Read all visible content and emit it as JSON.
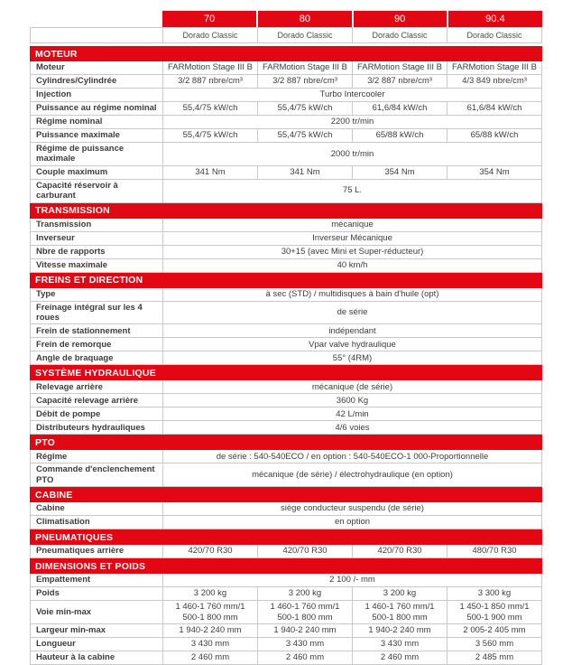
{
  "colors": {
    "accent_red": "#e30613",
    "border": "#c9c9c9",
    "text": "#3c3c3b"
  },
  "header": {
    "models": [
      "70",
      "80",
      "90",
      "90.4"
    ],
    "series": [
      "Dorado Classic",
      "Dorado Classic",
      "Dorado Classic",
      "Dorado Classic"
    ]
  },
  "sections": [
    {
      "title": "MOTEUR",
      "rows": [
        {
          "label": "Moteur",
          "values": [
            "FARMotion Stage III B",
            "FARMotion Stage III B",
            "FARMotion Stage III B",
            "FARMotion Stage III B"
          ]
        },
        {
          "label": "Cylindres/Cylindrée",
          "values": [
            "3/2 887 nbre/cm³",
            "3/2 887 nbre/cm³",
            "3/2 887 nbre/cm³",
            "4/3 849 nbre/cm³"
          ]
        },
        {
          "label": "Injection",
          "span": "Turbo Intercooler"
        },
        {
          "label": "Puissance au régime nominal",
          "values": [
            "55,4/75 kW/ch",
            "55,4/75 kW/ch",
            "61,6/84 kW/ch",
            "61,6/84 kW/ch"
          ]
        },
        {
          "label": "Régime nominal",
          "span": "2200 tr/min"
        },
        {
          "label": "Puissance maximale",
          "values": [
            "55,4/75 kW/ch",
            "55,4/75 kW/ch",
            "65/88 kW/ch",
            "65/88 kW/ch"
          ]
        },
        {
          "label": "Régime de puissance maximale",
          "span": "2000 tr/min"
        },
        {
          "label": "Couple maximum",
          "values": [
            "341 Nm",
            "341 Nm",
            "354 Nm",
            "354 Nm"
          ]
        },
        {
          "label": "Capacité réservoir à carburant",
          "span": "75 L."
        }
      ]
    },
    {
      "title": "TRANSMISSION",
      "rows": [
        {
          "label": "Transmission",
          "span": "mécanique"
        },
        {
          "label": "Inverseur",
          "span": "Inverseur Mécanique"
        },
        {
          "label": "Nbre de rapports",
          "span": "30+15 (avec Mini et Super-réducteur)"
        },
        {
          "label": "Vitesse maximale",
          "span": "40 km/h"
        }
      ]
    },
    {
      "title": "FREINS ET DIRECTION",
      "rows": [
        {
          "label": "Type",
          "span": "à sec (STD) / multidisques à bain d'huile (opt)"
        },
        {
          "label": "Freinage intégral sur les 4 roues",
          "span": "de série"
        },
        {
          "label": "Frein de stationnement",
          "span": "indépendant"
        },
        {
          "label": "Frein de remorque",
          "span": "Vpar valve hydraulique"
        },
        {
          "label": "Angle de braquage",
          "span": "55° (4RM)"
        }
      ]
    },
    {
      "title": "SYSTÈME HYDRAULIQUE",
      "rows": [
        {
          "label": "Relevage arrière",
          "span": "mécanique (de série)"
        },
        {
          "label": "Capacité relevage arrière",
          "span": "3600 Kg"
        },
        {
          "label": "Débit de pompe",
          "span": "42 L/min"
        },
        {
          "label": "Distributeurs hydrauliques",
          "span": "4/6 voies"
        }
      ]
    },
    {
      "title": "PTO",
      "rows": [
        {
          "label": "Régime",
          "span": "de série : 540-540ECO / en option : 540-540ECO-1 000-Proportionnelle"
        },
        {
          "label": "Commande d'enclenchement PTO",
          "span": "mécanique (de série) / électrohydraulique (en option)"
        }
      ]
    },
    {
      "title": "CABINE",
      "rows": [
        {
          "label": "Cabine",
          "span": "siège conducteur suspendu (de série)"
        },
        {
          "label": "Climatisation",
          "span": "en option"
        }
      ]
    },
    {
      "title": "PNEUMATIQUES",
      "rows": [
        {
          "label": "Pneumatiques arrière",
          "values": [
            "420/70 R30",
            "420/70 R30",
            "420/70 R30",
            "480/70 R30"
          ]
        }
      ]
    },
    {
      "title": "DIMENSIONS ET POIDS",
      "rows": [
        {
          "label": "Empattement",
          "span": "2 100 /- mm"
        },
        {
          "label": "Poids",
          "values": [
            "3 200 kg",
            "3 200 kg",
            "3 200 kg",
            "3 300 kg"
          ]
        },
        {
          "label": "Voie min-max",
          "values": [
            "1 460-1 760 mm/1 500-1 800 mm",
            "1 460-1 760 mm/1 500-1 800 mm",
            "1 460-1 760 mm/1 500-1 800 mm",
            "1 450-1 850 mm/1 500-1 900 mm"
          ]
        },
        {
          "label": "Largeur min-max",
          "values": [
            "1 940-2 240 mm",
            "1 940-2 240 mm",
            "1 940-2 240 mm",
            "2 005-2 405 mm"
          ]
        },
        {
          "label": "Longueur",
          "values": [
            "3 430 mm",
            "3 430 mm",
            "3 430 mm",
            "3 560 mm"
          ]
        },
        {
          "label": "Hauteur à la cabine",
          "values": [
            "2 460 mm",
            "2 460 mm",
            "2 460 mm",
            "2 485 mm"
          ]
        }
      ]
    }
  ]
}
